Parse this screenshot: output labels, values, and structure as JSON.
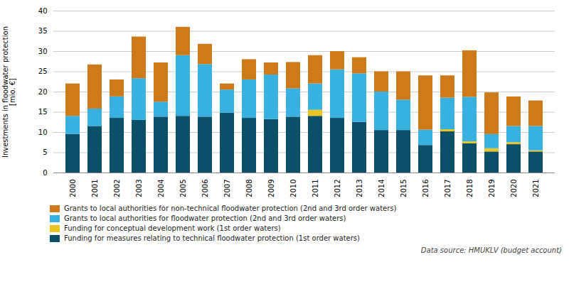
{
  "chart_data": {
    "type": "bar",
    "stacked": true,
    "categories": [
      "2000",
      "2001",
      "2002",
      "2003",
      "2004",
      "2005",
      "2006",
      "2007",
      "2008",
      "2009",
      "2010",
      "2011",
      "2012",
      "2013",
      "2014",
      "2015",
      "2016",
      "2017",
      "2018",
      "2019",
      "2020",
      "2021"
    ],
    "series": [
      {
        "name": "Funding for measures relating to technical floodwater protection (1st order waters)",
        "color": "#0b5068",
        "values": [
          9.5,
          11.5,
          13.5,
          13.0,
          13.8,
          14.0,
          13.8,
          14.8,
          13.5,
          13.2,
          13.8,
          14.0,
          13.5,
          12.5,
          10.5,
          10.5,
          6.8,
          10.2,
          7.2,
          5.2,
          7.0,
          5.2
        ]
      },
      {
        "name": "Funding for conceptual development work (1st order waters)",
        "color": "#e8c520",
        "values": [
          0.0,
          0.0,
          0.0,
          0.0,
          0.0,
          0.0,
          0.0,
          0.0,
          0.0,
          0.0,
          0.0,
          1.5,
          0.0,
          0.0,
          0.0,
          0.0,
          0.0,
          0.5,
          0.5,
          0.8,
          0.5,
          0.3
        ]
      },
      {
        "name": "Grants to local authorities for floodwater protection (2nd and 3rd order waters)",
        "color": "#38b0e0",
        "values": [
          4.5,
          4.3,
          5.3,
          10.3,
          3.7,
          15.0,
          13.0,
          5.7,
          9.5,
          11.0,
          7.0,
          6.5,
          12.0,
          12.0,
          9.5,
          7.5,
          3.8,
          7.8,
          11.0,
          3.5,
          4.0,
          6.0
        ]
      },
      {
        "name": "Grants to local authorities for non-technical floodwater protection (2nd and 3rd order waters)",
        "color": "#cc7a1a",
        "values": [
          8.0,
          10.9,
          4.2,
          10.3,
          9.7,
          7.0,
          5.0,
          1.5,
          5.0,
          3.0,
          6.5,
          7.0,
          4.5,
          4.0,
          5.0,
          7.0,
          13.4,
          5.5,
          11.5,
          10.3,
          7.3,
          6.3
        ]
      }
    ],
    "ylabel": "Investments in floodwater protection\n[mio. €]",
    "ylim": [
      0,
      40
    ],
    "yticks": [
      0,
      5,
      10,
      15,
      20,
      25,
      30,
      35,
      40
    ],
    "grid": true,
    "annotations": [
      "Data source: HMUKLV (budget account)"
    ]
  }
}
